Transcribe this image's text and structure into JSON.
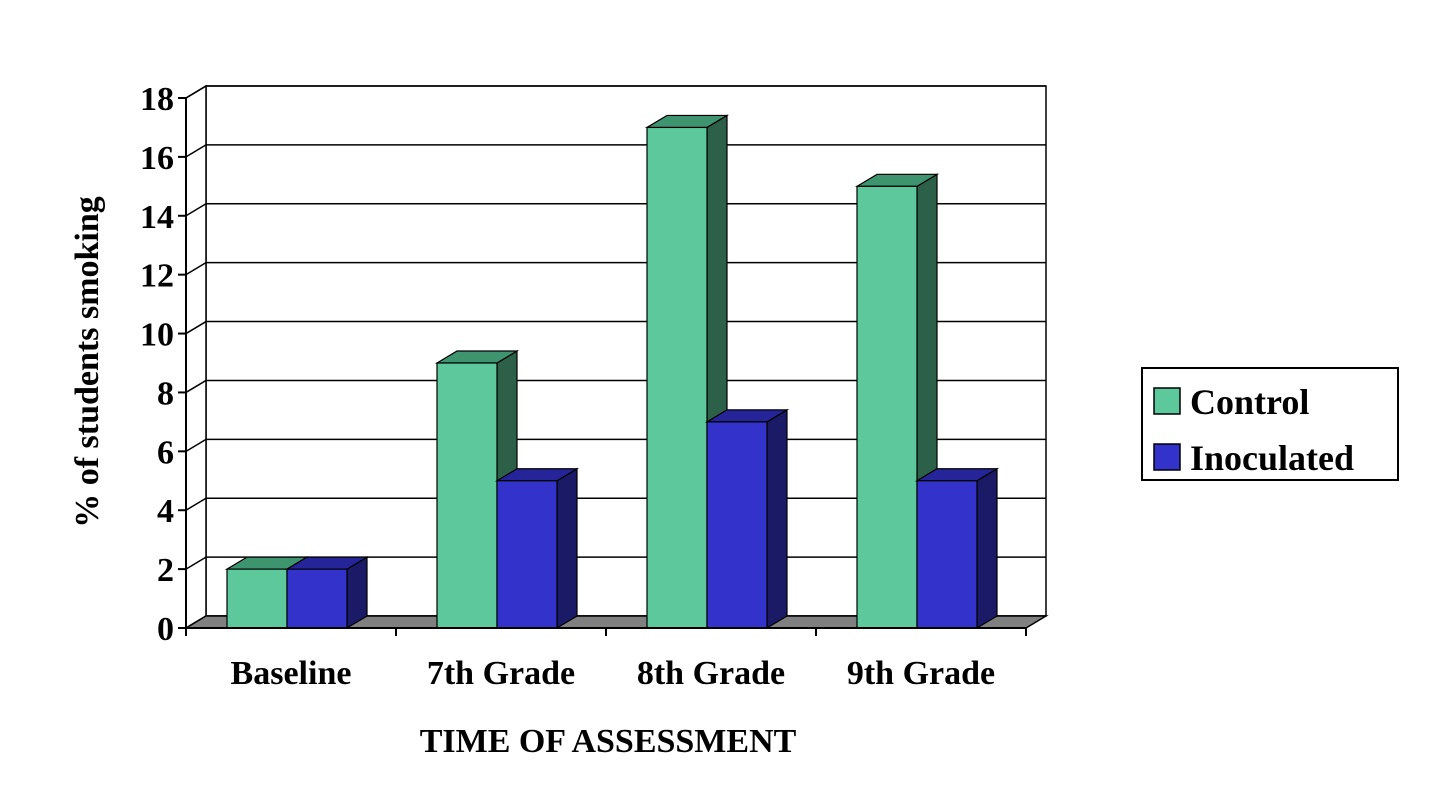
{
  "chart_data": {
    "type": "bar",
    "style": "3d-clustered-column",
    "categories": [
      "Baseline",
      "7th Grade",
      "8th Grade",
      "9th Grade"
    ],
    "series": [
      {
        "name": "Control",
        "values": [
          2,
          9,
          17,
          15
        ],
        "color": "#5cc89b",
        "side_color": "#2d6049",
        "top_color": "#3f9470"
      },
      {
        "name": "Inoculated",
        "values": [
          2,
          5,
          7,
          5
        ],
        "color": "#3333cc",
        "side_color": "#1a1a66",
        "top_color": "#252599"
      }
    ],
    "xlabel": "TIME OF ASSESSMENT",
    "ylabel": "% of students smoking",
    "ylim": [
      0,
      18
    ],
    "yticks": [
      "0",
      "2",
      "4",
      "6",
      "8",
      "10",
      "12",
      "14",
      "16",
      "18"
    ],
    "grid": true,
    "legend_position": "right",
    "floor_color": "#808080",
    "wall_color": "#ffffff"
  }
}
